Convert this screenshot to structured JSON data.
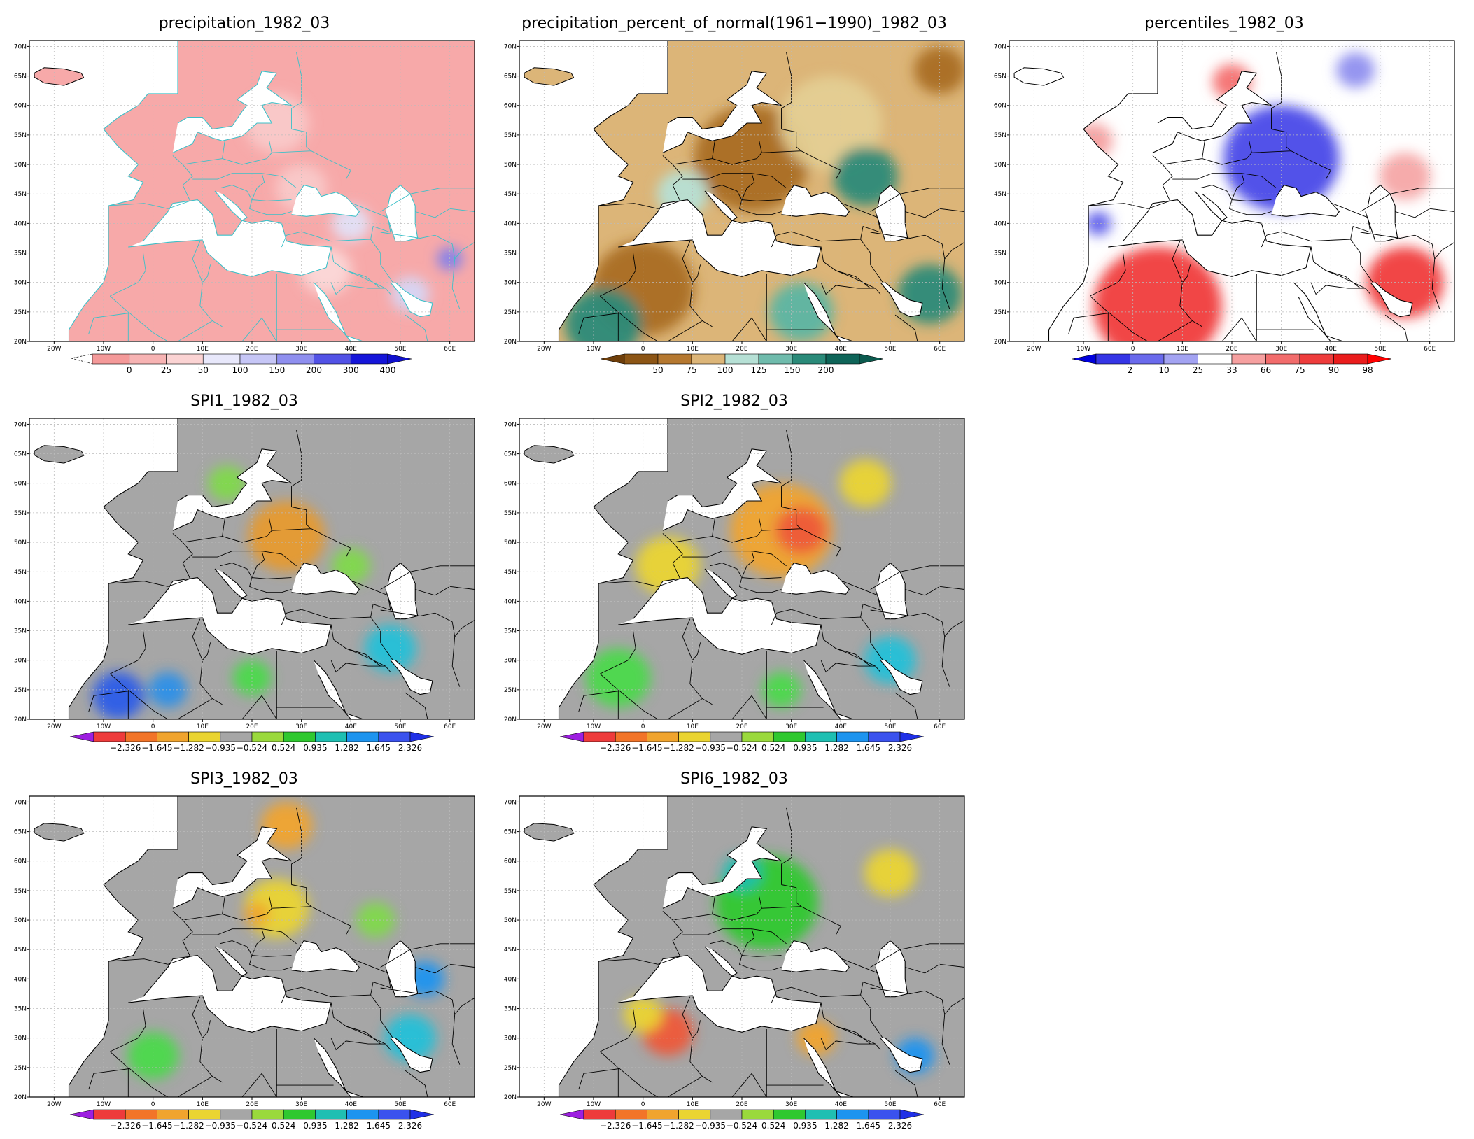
{
  "figure": {
    "x_ticks": [
      "20W",
      "10W",
      "0",
      "10E",
      "20E",
      "30E",
      "40E",
      "50E",
      "60E"
    ],
    "y_ticks": [
      "70N",
      "65N",
      "60N",
      "55N",
      "50N",
      "45N",
      "40N",
      "35N",
      "30N",
      "25N",
      "20N"
    ]
  },
  "panels": [
    {
      "id": "precipitation",
      "title": "precipitation_1982_03",
      "background": "#f7a9a9",
      "blobs": [
        {
          "lon": 25,
          "lat": 57,
          "r": 5,
          "color": "#f9c9c9"
        },
        {
          "lon": 30,
          "lat": 46,
          "r": 4,
          "color": "#f9c9c9"
        },
        {
          "lon": 35,
          "lat": 32,
          "r": 4,
          "color": "#fbd8d8"
        },
        {
          "lon": 52,
          "lat": 28,
          "r": 3,
          "color": "#d6d6f6"
        },
        {
          "lon": 40,
          "lat": 40,
          "r": 3,
          "color": "#e2e2f8"
        },
        {
          "lon": 60,
          "lat": 34,
          "r": 2,
          "color": "#8080ec"
        }
      ],
      "colorbar": {
        "labels": [
          "0",
          "25",
          "50",
          "100",
          "150",
          "200",
          "300",
          "400"
        ],
        "colors": [
          "#f49999",
          "#f7b3b3",
          "#fbd3d3",
          "#e8e8fb",
          "#c6c6f6",
          "#8f8fef",
          "#5252e6",
          "#1515d9"
        ],
        "left_arrow": false,
        "right_arrow": true,
        "right_color": "#1010cc"
      }
    },
    {
      "id": "percent-normal",
      "title": "precipitation_percent_of_normal(1961−1990)_1982_03",
      "background": "#dcb578",
      "blobs": [
        {
          "lon": 22,
          "lat": 51,
          "r": 9,
          "color": "#a96d24"
        },
        {
          "lon": 0,
          "lat": 29,
          "r": 8,
          "color": "#a96d24"
        },
        {
          "lon": 38,
          "lat": 57,
          "r": 8,
          "color": "#e4cf93"
        },
        {
          "lon": 45,
          "lat": 48,
          "r": 5,
          "color": "#2a8a79"
        },
        {
          "lon": 8,
          "lat": 45,
          "r": 4,
          "color": "#b6e0d5"
        },
        {
          "lon": -8,
          "lat": 23,
          "r": 6,
          "color": "#2a8a79"
        },
        {
          "lon": 32,
          "lat": 25,
          "r": 5,
          "color": "#5bb5a3"
        },
        {
          "lon": 58,
          "lat": 28,
          "r": 5,
          "color": "#2a8a79"
        },
        {
          "lon": 60,
          "lat": 66,
          "r": 4,
          "color": "#a96d24"
        }
      ],
      "colorbar": {
        "labels": [
          "50",
          "75",
          "100",
          "125",
          "150",
          "200"
        ],
        "colors": [
          "#8c5515",
          "#b57830",
          "#dcb578",
          "#b6e0d5",
          "#6fbbac",
          "#2a8a79",
          "#0e6458"
        ],
        "left_arrow": true,
        "right_arrow": true,
        "left_color": "#6e3e0a",
        "right_color": "#0b5a4e"
      }
    },
    {
      "id": "percentiles",
      "title": "percentiles_1982_03",
      "background": "#ffffff",
      "blobs": [
        {
          "lon": 30,
          "lat": 51,
          "r": 9,
          "color": "#4a4ae8"
        },
        {
          "lon": 5,
          "lat": 26,
          "r": 10,
          "color": "#f03c3c"
        },
        {
          "lon": 55,
          "lat": 30,
          "r": 6,
          "color": "#f03c3c"
        },
        {
          "lon": -8,
          "lat": 54,
          "r": 3,
          "color": "#f4a0a0"
        },
        {
          "lon": 20,
          "lat": 64,
          "r": 3,
          "color": "#f47070"
        },
        {
          "lon": 55,
          "lat": 48,
          "r": 4,
          "color": "#f6a6a6"
        },
        {
          "lon": -7,
          "lat": 40,
          "r": 2,
          "color": "#5a5aea"
        },
        {
          "lon": 45,
          "lat": 66,
          "r": 3,
          "color": "#8f8fef"
        }
      ],
      "colorbar": {
        "labels": [
          "2",
          "10",
          "25",
          "33",
          "66",
          "75",
          "90",
          "98"
        ],
        "colors": [
          "#3535e6",
          "#6a6aec",
          "#a3a3f2",
          "#ffffff",
          "#f6a0a0",
          "#f26c6c",
          "#ee3c3c",
          "#ea1c1c"
        ],
        "left_arrow": true,
        "right_arrow": true,
        "left_color": "#0000dd",
        "right_color": "#ff0000"
      }
    },
    {
      "id": "spi1",
      "title": "SPI1_1982_03",
      "background": "#a6a6a6",
      "blobs": [
        {
          "lon": 27,
          "lat": 51,
          "r": 6,
          "color": "#e69a2e"
        },
        {
          "lon": -7,
          "lat": 24,
          "r": 4,
          "color": "#2a5de8"
        },
        {
          "lon": 3,
          "lat": 25,
          "r": 3,
          "color": "#2a8fe8"
        },
        {
          "lon": 48,
          "lat": 32,
          "r": 4,
          "color": "#22c0d8"
        },
        {
          "lon": 20,
          "lat": 27,
          "r": 3,
          "color": "#4cd94c"
        },
        {
          "lon": 40,
          "lat": 46,
          "r": 3,
          "color": "#7fd94c"
        },
        {
          "lon": 15,
          "lat": 60,
          "r": 3,
          "color": "#7fd94c"
        }
      ],
      "colorbar": {
        "labels": [
          "−2.326",
          "−1.645",
          "−1.282",
          "−0.935",
          "−0.524",
          "0.524",
          "0.935",
          "1.282",
          "1.645",
          "2.326"
        ],
        "colors": [
          "#ee3b3b",
          "#f27428",
          "#f0a42e",
          "#ead431",
          "#a6a6a6",
          "#9ad93c",
          "#2fc82f",
          "#1fbfb2",
          "#1d94ef",
          "#3a52ee"
        ],
        "left_arrow": true,
        "right_arrow": true,
        "left_color": "#9d1fe0",
        "right_color": "#2030e6"
      }
    },
    {
      "id": "spi2",
      "title": "SPI2_1982_03",
      "background": "#a6a6a6",
      "blobs": [
        {
          "lon": 28,
          "lat": 52,
          "r": 8,
          "color": "#f0a42e"
        },
        {
          "lon": 32,
          "lat": 52,
          "r": 4,
          "color": "#ee5a3a"
        },
        {
          "lon": 5,
          "lat": 46,
          "r": 5,
          "color": "#ead431"
        },
        {
          "lon": 45,
          "lat": 60,
          "r": 4,
          "color": "#ead431"
        },
        {
          "lon": -5,
          "lat": 27,
          "r": 5,
          "color": "#4cd94c"
        },
        {
          "lon": 50,
          "lat": 30,
          "r": 4,
          "color": "#22c0d8"
        },
        {
          "lon": 28,
          "lat": 25,
          "r": 3,
          "color": "#4cd94c"
        }
      ],
      "colorbar": {
        "labels": [
          "−2.326",
          "−1.645",
          "−1.282",
          "−0.935",
          "−0.524",
          "0.524",
          "0.935",
          "1.282",
          "1.645",
          "2.326"
        ],
        "colors": [
          "#ee3b3b",
          "#f27428",
          "#f0a42e",
          "#ead431",
          "#a6a6a6",
          "#9ad93c",
          "#2fc82f",
          "#1fbfb2",
          "#1d94ef",
          "#3a52ee"
        ],
        "left_arrow": true,
        "right_arrow": true,
        "left_color": "#9d1fe0",
        "right_color": "#2030e6"
      }
    },
    {
      "id": "spi3",
      "title": "SPI3_1982_03",
      "background": "#a6a6a6",
      "blobs": [
        {
          "lon": 27,
          "lat": 66,
          "r": 4,
          "color": "#f0a42e"
        },
        {
          "lon": 25,
          "lat": 52,
          "r": 5,
          "color": "#ead431"
        },
        {
          "lon": 21,
          "lat": 51,
          "r": 2,
          "color": "#f0a42e"
        },
        {
          "lon": 52,
          "lat": 30,
          "r": 4,
          "color": "#22c0d8"
        },
        {
          "lon": 0,
          "lat": 27,
          "r": 4,
          "color": "#4cd94c"
        },
        {
          "lon": 55,
          "lat": 40,
          "r": 3,
          "color": "#1d94ef"
        },
        {
          "lon": 45,
          "lat": 50,
          "r": 3,
          "color": "#7fd94c"
        }
      ],
      "colorbar": {
        "labels": [
          "−2.326",
          "−1.645",
          "−1.282",
          "−0.935",
          "−0.524",
          "0.524",
          "0.935",
          "1.282",
          "1.645",
          "2.326"
        ],
        "colors": [
          "#ee3b3b",
          "#f27428",
          "#f0a42e",
          "#ead431",
          "#a6a6a6",
          "#9ad93c",
          "#2fc82f",
          "#1fbfb2",
          "#1d94ef",
          "#3a52ee"
        ],
        "left_arrow": true,
        "right_arrow": true,
        "left_color": "#9d1fe0",
        "right_color": "#2030e6"
      }
    },
    {
      "id": "spi6",
      "title": "SPI6_1982_03",
      "background": "#a6a6a6",
      "blobs": [
        {
          "lon": 25,
          "lat": 53,
          "r": 8,
          "color": "#2fc82f"
        },
        {
          "lon": 20,
          "lat": 58,
          "r": 3,
          "color": "#1fbfb2"
        },
        {
          "lon": 5,
          "lat": 31,
          "r": 4,
          "color": "#ee5a3a"
        },
        {
          "lon": 0,
          "lat": 34,
          "r": 3,
          "color": "#ead431"
        },
        {
          "lon": 50,
          "lat": 58,
          "r": 4,
          "color": "#ead431"
        },
        {
          "lon": 55,
          "lat": 27,
          "r": 3,
          "color": "#1d94ef"
        },
        {
          "lon": 35,
          "lat": 30,
          "r": 3,
          "color": "#f0a42e"
        }
      ],
      "colorbar": {
        "labels": [
          "−2.326",
          "−1.645",
          "−1.282",
          "−0.935",
          "−0.524",
          "0.524",
          "0.935",
          "1.282",
          "1.645",
          "2.326"
        ],
        "colors": [
          "#ee3b3b",
          "#f27428",
          "#f0a42e",
          "#ead431",
          "#a6a6a6",
          "#9ad93c",
          "#2fc82f",
          "#1fbfb2",
          "#1d94ef",
          "#3a52ee"
        ],
        "left_arrow": true,
        "right_arrow": true,
        "left_color": "#9d1fe0",
        "right_color": "#2030e6"
      }
    }
  ]
}
